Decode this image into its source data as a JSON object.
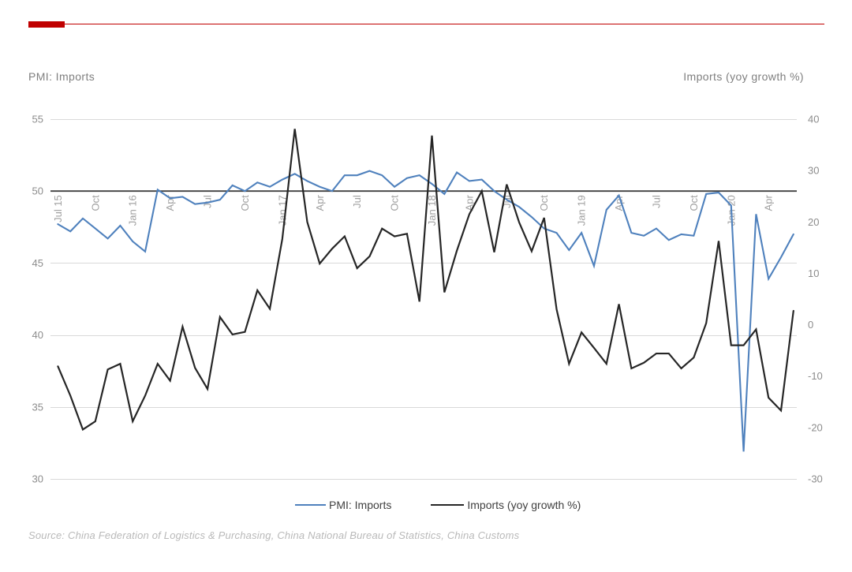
{
  "page": {
    "background": "#ffffff"
  },
  "header": {
    "accent_bar_color": "#c00000",
    "accent_rule_color": "#c00000"
  },
  "titles": {
    "left_axis_title": "PMI: Imports",
    "right_axis_title": "Imports (yoy growth %)"
  },
  "legend": {
    "items": [
      {
        "label": "PMI: Imports",
        "color": "#4f81bd"
      },
      {
        "label": "Imports (yoy growth %)",
        "color": "#262626"
      }
    ]
  },
  "source_note": "Source: China Federation of Logistics & Purchasing, China National Bureau of Statistics, China Customs",
  "chart_data": {
    "type": "line",
    "title": "",
    "x_label": "",
    "y_left_label": "PMI: Imports",
    "y_right_label": "Imports (yoy growth %)",
    "x": [
      "Jul 15",
      "Aug 15",
      "Sep 15",
      "Oct 15",
      "Nov 15",
      "Dec 15",
      "Jan 16",
      "Feb 16",
      "Mar 16",
      "Apr 16",
      "May 16",
      "Jun 16",
      "Jul 16",
      "Aug 16",
      "Sep 16",
      "Oct 16",
      "Nov 16",
      "Dec 16",
      "Jan 17",
      "Feb 17",
      "Mar 17",
      "Apr 17",
      "May 17",
      "Jun 17",
      "Jul 17",
      "Aug 17",
      "Sep 17",
      "Oct 17",
      "Nov 17",
      "Dec 17",
      "Jan 18",
      "Feb 18",
      "Mar 18",
      "Apr 18",
      "May 18",
      "Jun 18",
      "Jul 18",
      "Aug 18",
      "Sep 18",
      "Oct 18",
      "Nov 18",
      "Dec 18",
      "Jan 19",
      "Feb 19",
      "Mar 19",
      "Apr 19",
      "May 19",
      "Jun 19",
      "Jul 19",
      "Aug 19",
      "Sep 19",
      "Oct 19",
      "Nov 19",
      "Dec 19",
      "Jan 20",
      "Feb 20",
      "Mar 20",
      "Apr 20",
      "May 20",
      "Jun 20"
    ],
    "x_tick_labels": [
      "Jul 15",
      "Oct",
      "Jan 16",
      "Apr",
      "Jul",
      "Oct",
      "Jan 17",
      "Apr",
      "Jul",
      "Oct",
      "Jan 18",
      "Apr",
      "Jul",
      "Oct",
      "Jan 19",
      "Apr",
      "Jul",
      "Oct",
      "Jan 20",
      "Apr"
    ],
    "x_tick_step": 3,
    "series": [
      {
        "name": "PMI: Imports",
        "axis": "left",
        "color": "#4f81bd",
        "stroke_width": 2.1,
        "values": [
          47.7,
          47.2,
          48.1,
          47.4,
          46.7,
          47.6,
          46.5,
          45.8,
          50.1,
          49.5,
          49.6,
          49.1,
          49.2,
          49.4,
          50.4,
          50.0,
          50.6,
          50.3,
          50.8,
          51.2,
          50.7,
          50.3,
          50.0,
          51.1,
          51.1,
          51.4,
          51.1,
          50.3,
          50.9,
          51.1,
          50.5,
          49.8,
          51.3,
          50.7,
          50.8,
          50.0,
          49.4,
          48.9,
          48.2,
          47.4,
          47.1,
          45.9,
          47.1,
          44.8,
          48.7,
          49.7,
          47.1,
          46.9,
          47.4,
          46.6,
          47.0,
          46.9,
          49.8,
          49.9,
          49.0,
          31.9,
          48.4,
          43.9,
          45.4,
          47.0
        ]
      },
      {
        "name": "Imports (yoy growth %)",
        "axis": "right",
        "color": "#262626",
        "stroke_width": 2.2,
        "values": [
          -8.1,
          -13.8,
          -20.4,
          -18.8,
          -8.7,
          -7.6,
          -18.8,
          -13.8,
          -7.6,
          -10.9,
          -0.4,
          -8.4,
          -12.5,
          1.5,
          -1.9,
          -1.4,
          6.7,
          3.1,
          16.7,
          38.1,
          20.0,
          11.9,
          14.8,
          17.2,
          11.0,
          13.3,
          18.7,
          17.2,
          17.7,
          4.5,
          36.8,
          6.3,
          14.4,
          21.5,
          26.0,
          14.1,
          27.3,
          19.9,
          14.3,
          20.8,
          3.0,
          -7.6,
          -1.5,
          -4.5,
          -7.6,
          4.0,
          -8.5,
          -7.4,
          -5.6,
          -5.6,
          -8.5,
          -6.4,
          0.3,
          16.3,
          -4.0,
          -4.0,
          -0.9,
          -14.2,
          -16.7,
          2.7
        ]
      }
    ],
    "left_axis": {
      "min": 30,
      "max": 55,
      "ticks": [
        55,
        50,
        45,
        40,
        35,
        30
      ]
    },
    "right_axis": {
      "min": -30,
      "max": 40,
      "ticks": [
        40,
        30,
        20,
        10,
        0,
        -10,
        -20,
        -30
      ]
    },
    "axis_cross_left_value": 50,
    "grid": true,
    "legend_position": "bottom",
    "colors": {
      "grid_line": "#d9d9d9",
      "cross_axis_line": "#404040",
      "y_tick_label": "#8c8c8c",
      "x_tick_label": "#a0a0a0"
    }
  }
}
